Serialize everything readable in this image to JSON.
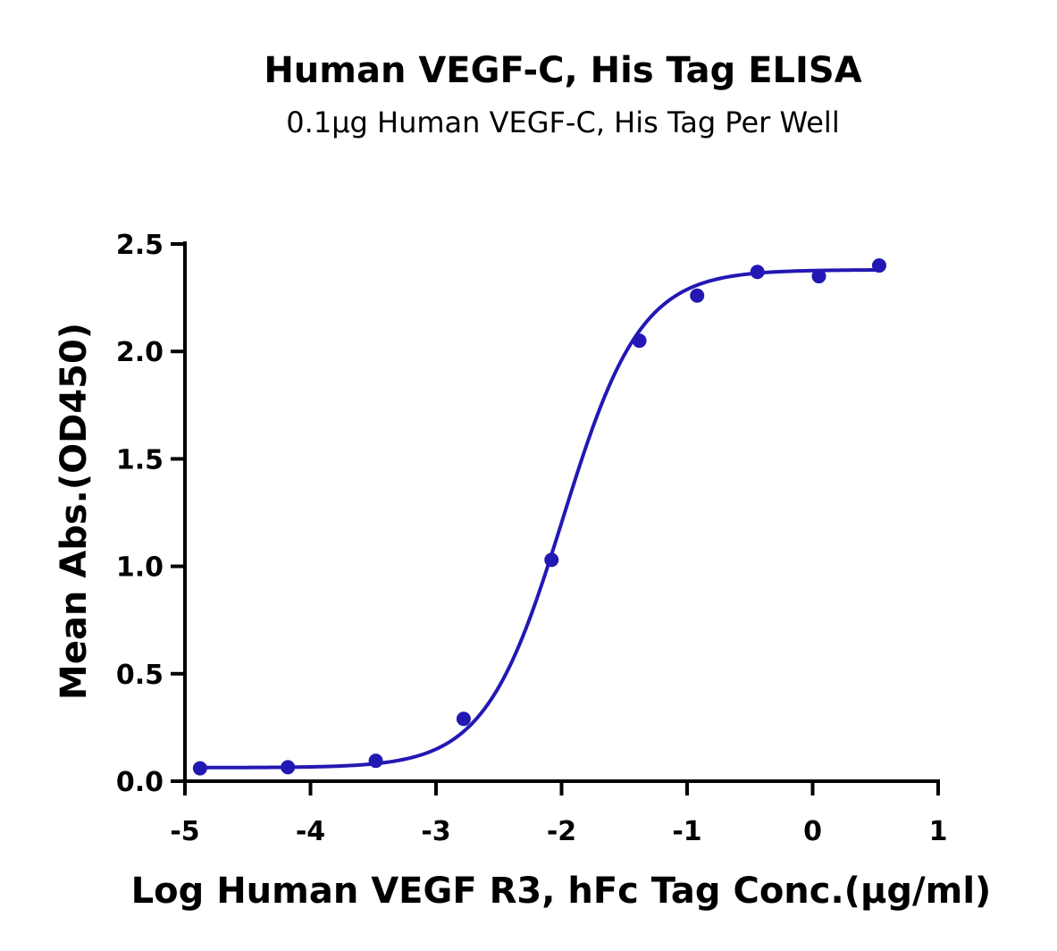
{
  "chart_data": {
    "type": "scatter",
    "title": "Human VEGF-C, His Tag ELISA",
    "subtitle": "0.1μg Human VEGF-C, His Tag Per Well",
    "xlabel": "Log Human VEGF R3, hFc Tag Conc.(μg/ml)",
    "ylabel": "Mean Abs.(OD450)",
    "xlim": [
      -5,
      1
    ],
    "ylim": [
      0,
      2.5
    ],
    "x_ticks": [
      -5,
      -4,
      -3,
      -2,
      -1,
      0,
      1
    ],
    "x_tick_labels": [
      "-5",
      "-4",
      "-3",
      "-2",
      "-1",
      "0",
      "1"
    ],
    "y_ticks": [
      0,
      0.5,
      1,
      1.5,
      2,
      2.5
    ],
    "y_tick_labels": [
      "0.0",
      "0.5",
      "1.0",
      "1.5",
      "2.0",
      "2.5"
    ],
    "grid": false,
    "color": "#2318b4",
    "series": [
      {
        "points": [
          {
            "x": -4.88,
            "y": 0.06
          },
          {
            "x": -4.18,
            "y": 0.065
          },
          {
            "x": -3.48,
            "y": 0.095
          },
          {
            "x": -2.78,
            "y": 0.29
          },
          {
            "x": -2.08,
            "y": 1.03
          },
          {
            "x": -1.38,
            "y": 2.05
          },
          {
            "x": -0.92,
            "y": 2.26
          },
          {
            "x": -0.44,
            "y": 2.37
          },
          {
            "x": 0.05,
            "y": 2.35
          },
          {
            "x": 0.53,
            "y": 2.4
          }
        ],
        "fit": {
          "model": "4PL",
          "bottom": 0.063,
          "top": 2.38,
          "logEC50": -1.99,
          "hill_slope": 1.4,
          "x_range": [
            -4.88,
            0.53
          ]
        }
      }
    ]
  }
}
